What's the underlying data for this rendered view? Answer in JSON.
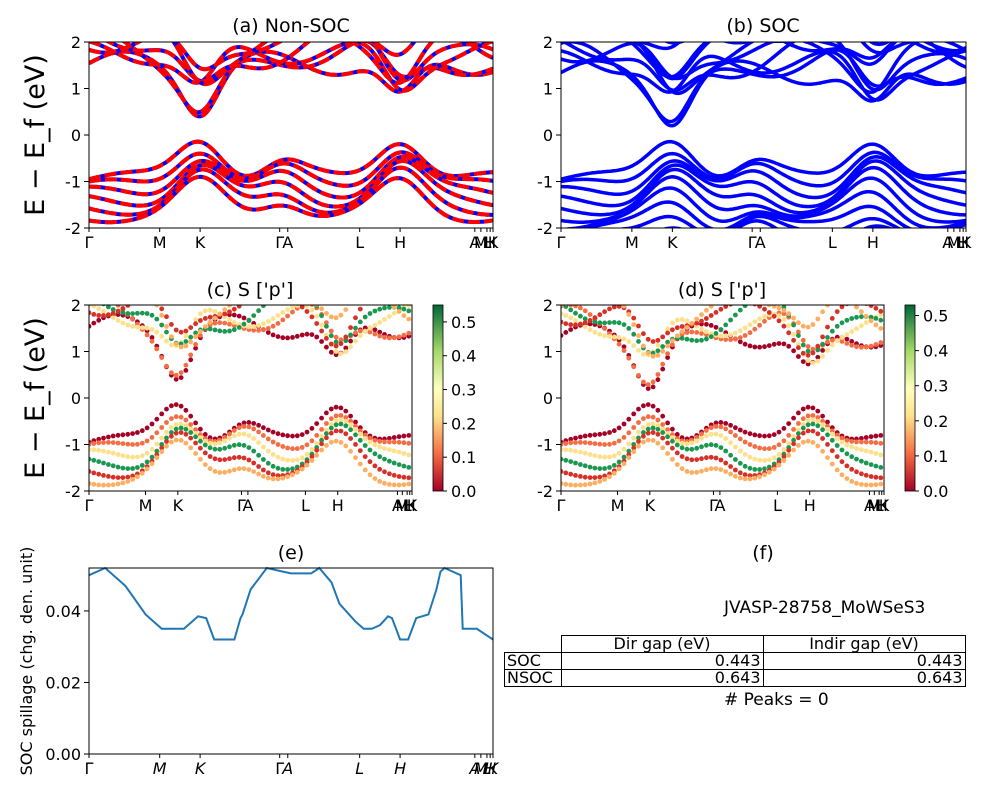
{
  "figure_id": "JVASP-28758_MoWSeS3",
  "peaks_text": "# Peaks = 0",
  "shared": {
    "ylabel_band": "E − E_f (eV)",
    "kpath_labels": [
      "Γ",
      "M",
      "K",
      "Γ",
      "A",
      "L",
      "H",
      "A",
      "M",
      "L",
      "H",
      "K"
    ]
  },
  "colors": {
    "non_soc_a": "#0000ff",
    "non_soc_b": "#ff0000",
    "soc": "#0000ff",
    "spillage": "#1f77b4"
  },
  "table": {
    "headers": [
      "Dir gap (eV)",
      "Indir gap (eV)"
    ],
    "rows": [
      {
        "label": "SOC",
        "dir_gap": "0.443",
        "indir_gap": "0.443"
      },
      {
        "label": "NSOC",
        "dir_gap": "0.643",
        "indir_gap": "0.643"
      }
    ]
  },
  "chart_data": [
    {
      "type": "line",
      "title": "(a) Non-SOC",
      "ylabel": "E − E_f (eV)",
      "ylim": [
        -2,
        2
      ],
      "yticks": [
        -2,
        -1,
        0,
        1,
        2
      ],
      "xticks": [
        "Γ",
        "M",
        "K",
        "ΓA",
        "L",
        "H",
        "A",
        "M|L",
        "H|K"
      ],
      "valence_top_eV": 0.0,
      "conduction_min_eV": 0.643,
      "series": [
        {
          "color": "#ff0000",
          "style": "solid-dashed-overlap"
        }
      ]
    },
    {
      "type": "line",
      "title": "(b) SOC",
      "ylim": [
        -2,
        2
      ],
      "yticks": [
        -2,
        -1,
        0,
        1,
        2
      ],
      "xticks": [
        "Γ",
        "M",
        "K",
        "ΓA",
        "L",
        "H",
        "A",
        "M|L",
        "H|K"
      ],
      "valence_top_eV": 0.0,
      "conduction_min_eV": 0.443,
      "series": [
        {
          "color": "#0000ff"
        }
      ]
    },
    {
      "type": "scatter",
      "title": "(c)  S ['p']",
      "ylabel": "E − E_f (eV)",
      "ylim": [
        -2,
        2
      ],
      "yticks": [
        -2,
        -1,
        0,
        1,
        2
      ],
      "colorbar": {
        "min": 0.0,
        "max": 0.55,
        "ticks": [
          0.0,
          0.1,
          0.2,
          0.3,
          0.4,
          0.5
        ],
        "colormap": "RdYlGn"
      },
      "xticks": [
        "Γ",
        "M",
        "K",
        "ΓA",
        "L",
        "H",
        "A",
        "M|L",
        "H|K"
      ]
    },
    {
      "type": "scatter",
      "title": "(d) S ['p']",
      "ylim": [
        -2,
        2
      ],
      "yticks": [
        -2,
        -1,
        0,
        1,
        2
      ],
      "colorbar": {
        "min": 0.0,
        "max": 0.53,
        "ticks": [
          0.0,
          0.1,
          0.2,
          0.3,
          0.4,
          0.5
        ],
        "colormap": "RdYlGn"
      },
      "xticks": [
        "Γ",
        "M",
        "K",
        "ΓA",
        "L",
        "H",
        "A",
        "M|L",
        "H|K"
      ]
    },
    {
      "type": "line",
      "title": "(e)",
      "ylabel": "SOC spillage (chg. den. unit)",
      "ylim": [
        0.0,
        0.052
      ],
      "yticks": [
        "0.00",
        "0.02",
        "0.04"
      ],
      "xticks": [
        "Γ",
        "M",
        "K",
        "ΓA",
        "L",
        "H",
        "A",
        "M|L",
        "H|K"
      ],
      "x": [
        0,
        0.04,
        0.09,
        0.14,
        0.18,
        0.21,
        0.235,
        0.27,
        0.29,
        0.31,
        0.33,
        0.36,
        0.375,
        0.38,
        0.4,
        0.44,
        0.48,
        0.5,
        0.52,
        0.53,
        0.55,
        0.57,
        0.6,
        0.62,
        0.66,
        0.68,
        0.7,
        0.72,
        0.74,
        0.75,
        0.77,
        0.79,
        0.81,
        0.84,
        0.86,
        0.87,
        0.88,
        0.92,
        0.925,
        0.96,
        1.0
      ],
      "y": [
        0.05,
        0.052,
        0.047,
        0.039,
        0.035,
        0.035,
        0.035,
        0.0385,
        0.038,
        0.032,
        0.032,
        0.032,
        0.038,
        0.039,
        0.046,
        0.052,
        0.051,
        0.0505,
        0.0505,
        0.0505,
        0.0505,
        0.052,
        0.048,
        0.042,
        0.037,
        0.035,
        0.035,
        0.036,
        0.0385,
        0.038,
        0.032,
        0.032,
        0.038,
        0.039,
        0.046,
        0.051,
        0.052,
        0.05,
        0.035,
        0.035,
        0.032
      ]
    }
  ]
}
